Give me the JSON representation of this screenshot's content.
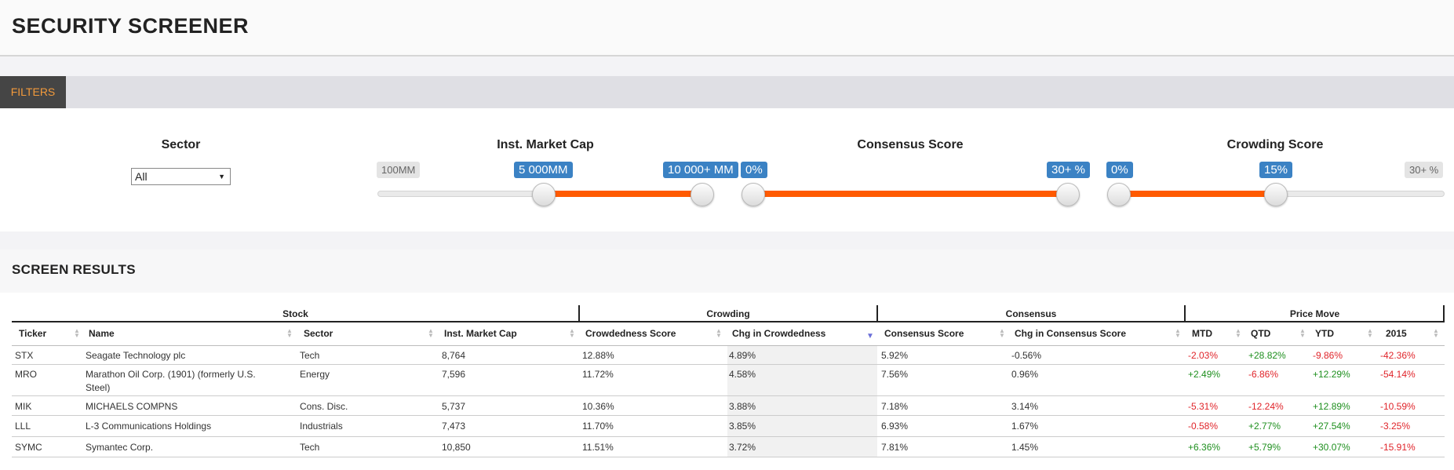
{
  "app": {
    "title": "SECURITY SCREENER"
  },
  "filters": {
    "tab_label": "FILTERS",
    "sector": {
      "title": "Sector",
      "selected": "All"
    },
    "market_cap": {
      "title": "Inst. Market Cap",
      "min_label": "100MM",
      "low_value": "5 000MM",
      "high_value": "10 000+ MM"
    },
    "consensus": {
      "title": "Consensus Score",
      "low_value": "0%",
      "high_value": "30+ %"
    },
    "crowding": {
      "title": "Crowding Score",
      "low_value": "0%",
      "high_value": "15%",
      "max_label": "30+ %"
    }
  },
  "results": {
    "title": "SCREEN RESULTS",
    "groups": [
      "Stock",
      "Crowding",
      "Consensus",
      "Price Move"
    ],
    "columns": [
      "Ticker",
      "Name",
      "Sector",
      "Inst. Market Cap",
      "Crowdedness Score",
      "Chg in Crowdedness",
      "Consensus Score",
      "Chg in Consensus Score",
      "MTD",
      "QTD",
      "YTD",
      "2015"
    ],
    "rows": [
      {
        "ticker": "STX",
        "name": "Seagate Technology plc",
        "sector": "Tech",
        "mcap": "8,764",
        "crowd": "12.88%",
        "chg_crowd": "4.89%",
        "cons": "5.92%",
        "chg_cons": "-0.56%",
        "mtd": "-2.03%",
        "qtd": "+28.82%",
        "ytd": "-9.86%",
        "y2015": "-42.36%"
      },
      {
        "ticker": "MRO",
        "name": "Marathon Oil Corp. (1901) (formerly U.S. Steel)",
        "sector": "Energy",
        "mcap": "7,596",
        "crowd": "11.72%",
        "chg_crowd": "4.58%",
        "cons": "7.56%",
        "chg_cons": "0.96%",
        "mtd": "+2.49%",
        "qtd": "-6.86%",
        "ytd": "+12.29%",
        "y2015": "-54.14%"
      },
      {
        "ticker": "MIK",
        "name": "MICHAELS COMPNS",
        "sector": "Cons. Disc.",
        "mcap": "5,737",
        "crowd": "10.36%",
        "chg_crowd": "3.88%",
        "cons": "7.18%",
        "chg_cons": "3.14%",
        "mtd": "-5.31%",
        "qtd": "-12.24%",
        "ytd": "+12.89%",
        "y2015": "-10.59%"
      },
      {
        "ticker": "LLL",
        "name": "L-3 Communications Holdings",
        "sector": "Industrials",
        "mcap": "7,473",
        "crowd": "11.70%",
        "chg_crowd": "3.85%",
        "cons": "6.93%",
        "chg_cons": "1.67%",
        "mtd": "-0.58%",
        "qtd": "+2.77%",
        "ytd": "+27.54%",
        "y2015": "-3.25%"
      },
      {
        "ticker": "SYMC",
        "name": "Symantec Corp.",
        "sector": "Tech",
        "mcap": "10,850",
        "crowd": "11.51%",
        "chg_crowd": "3.72%",
        "cons": "7.81%",
        "chg_cons": "1.45%",
        "mtd": "+6.36%",
        "qtd": "+5.79%",
        "ytd": "+30.07%",
        "y2015": "-15.91%"
      }
    ]
  },
  "colors": {
    "accent": "#ff5a00",
    "bubble": "#3b82c4",
    "tab_text": "#f29a3c",
    "positive": "#1e8f1e",
    "negative": "#e0242a"
  }
}
